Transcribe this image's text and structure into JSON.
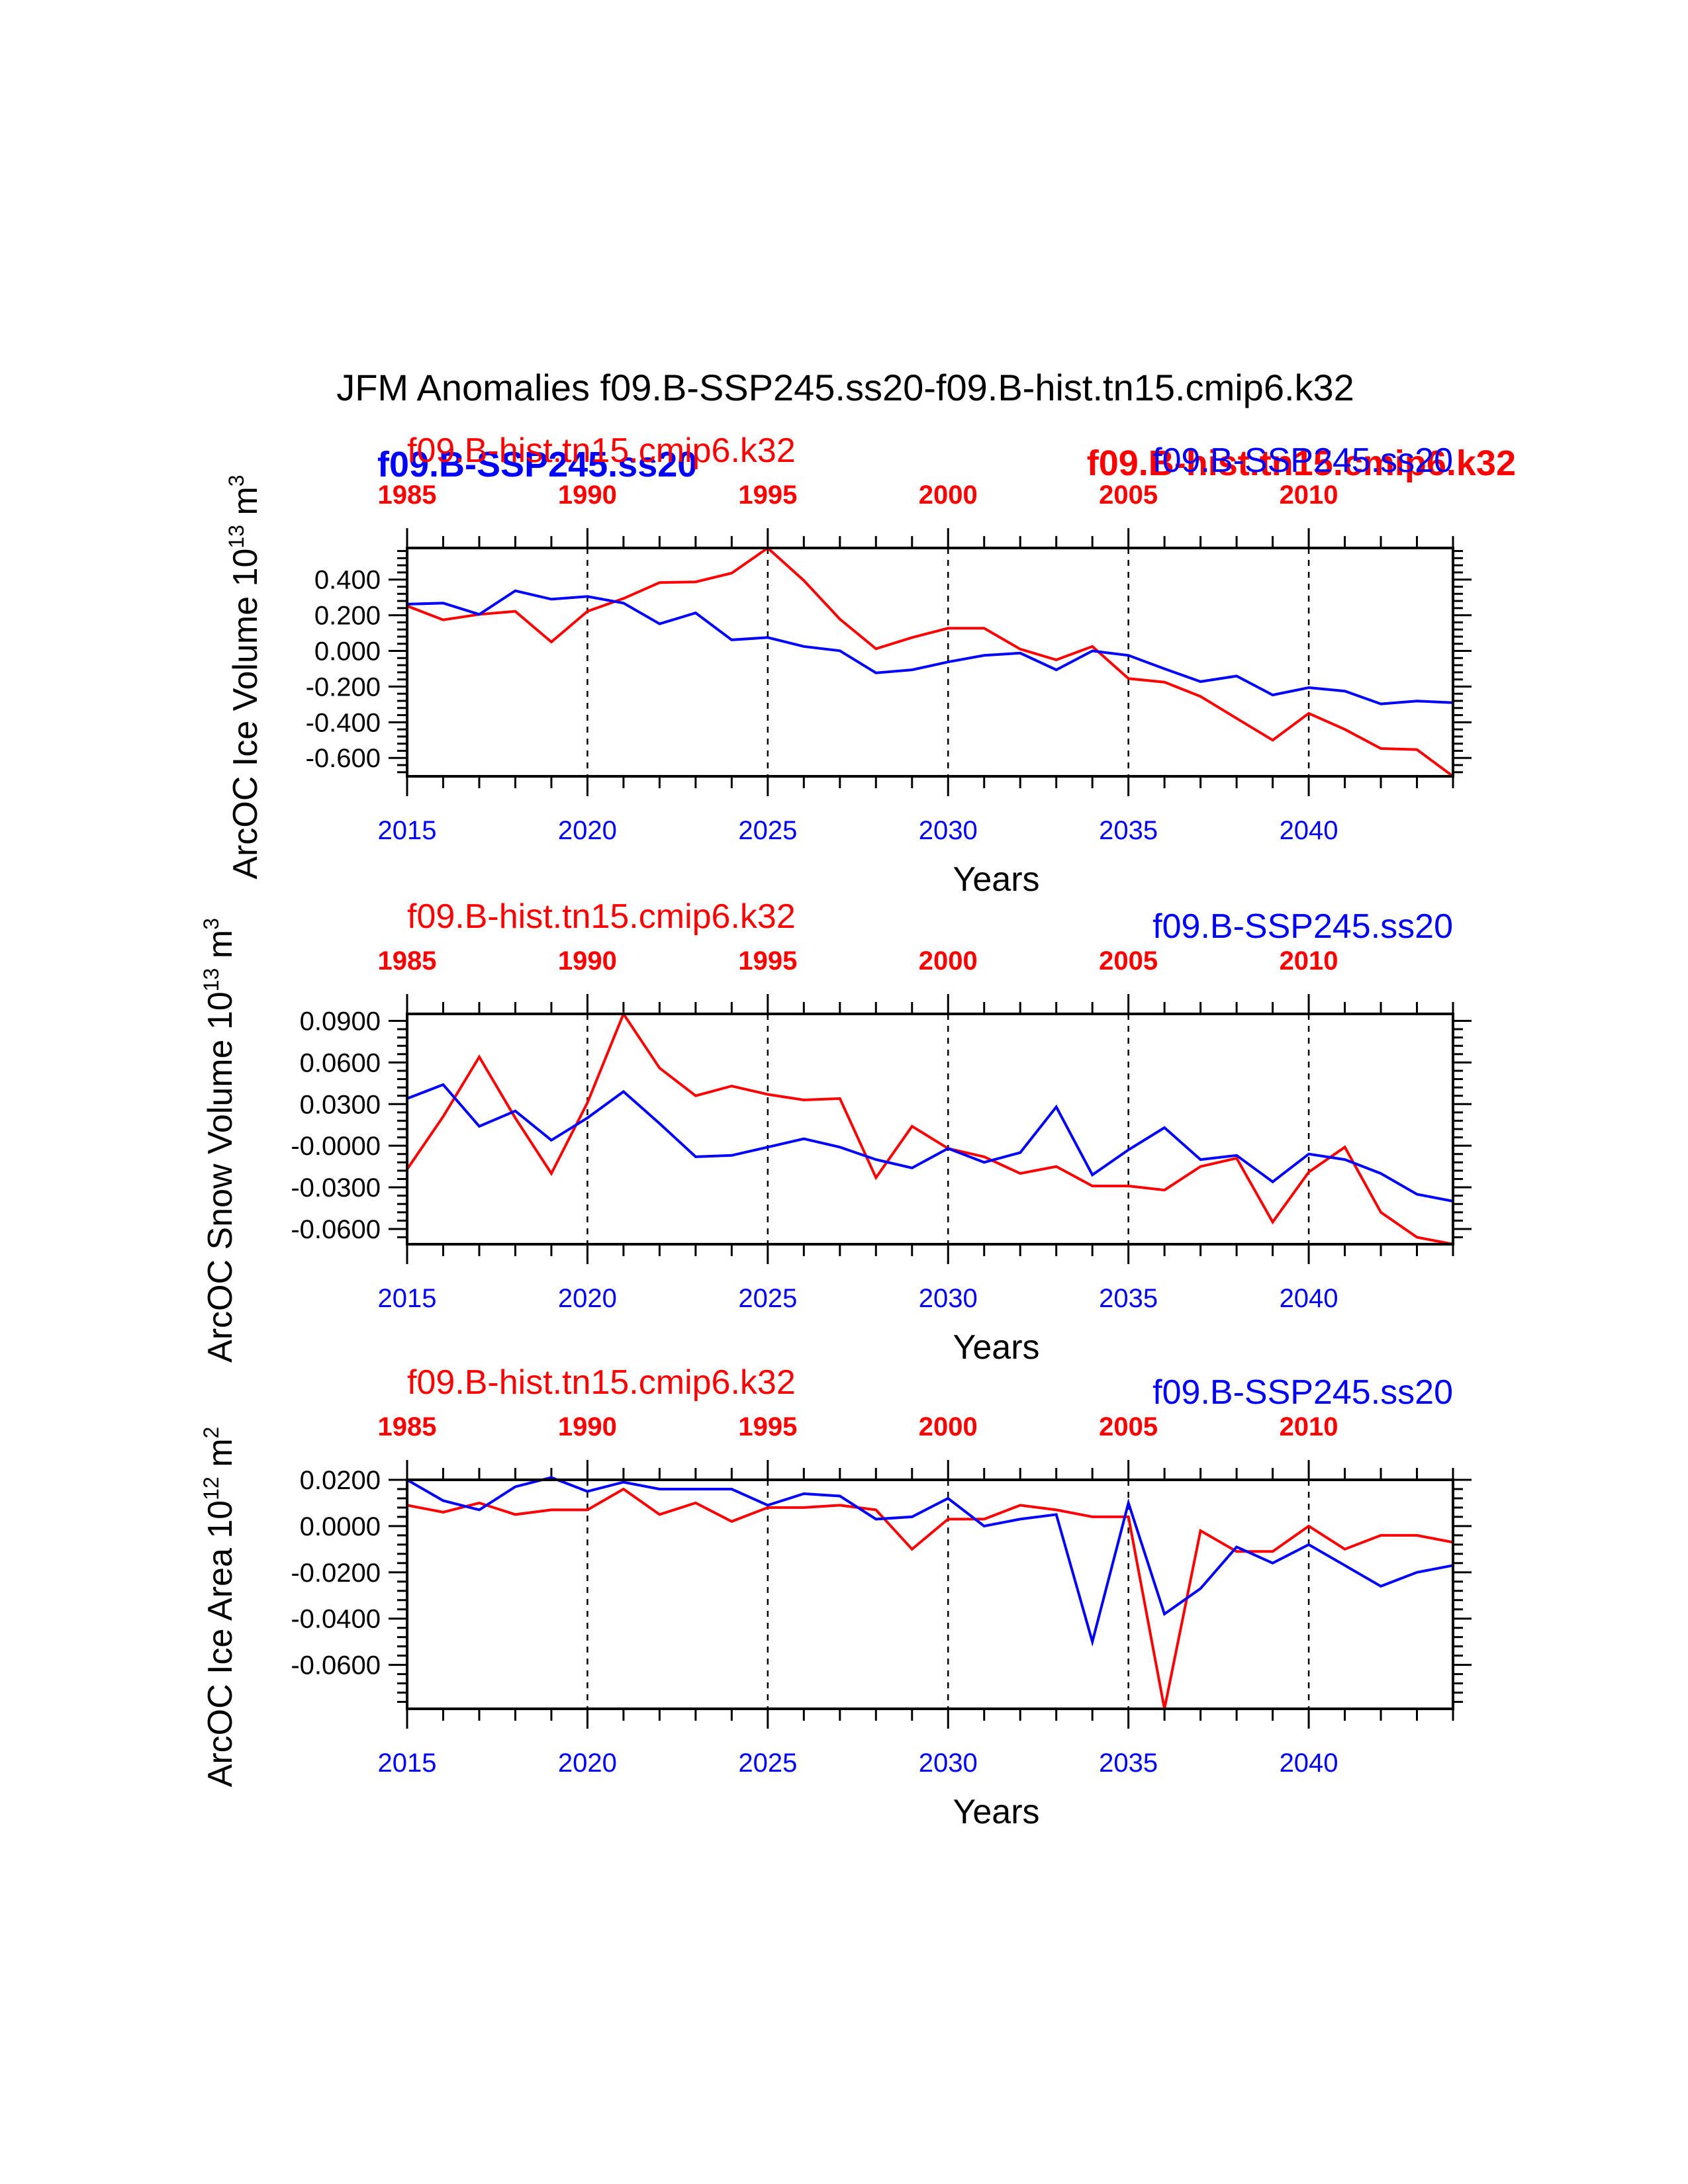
{
  "main_title": "JFM Anomalies f09.B-SSP245.ss20-f09.B-hist.tn15.cmip6.k32",
  "colors": {
    "case": "#0000ff",
    "control": "#ff0000",
    "axis": "#000000"
  },
  "overlap_labels": {
    "case": "f09.B-SSP245.ss20",
    "control": "f09.B-hist.tn15.cmip6.k32"
  },
  "chart_data": [
    {
      "type": "line",
      "ylabel": "ArcOC Ice Volume 10",
      "ylabel_exp": "13",
      "ylabel_unit": " m",
      "ylabel_unit_exp": "3",
      "xlabel": "Years",
      "bottom_ticks": [
        "2015",
        "2020",
        "2025",
        "2030",
        "2035",
        "2040"
      ],
      "top_ticks": [
        "1985",
        "1990",
        "1995",
        "2000",
        "2005",
        "2010"
      ],
      "yticks": [
        "0.400",
        "0.200",
        "0.000",
        "-0.200",
        "-0.400",
        "-0.600"
      ],
      "ytick_values": [
        0.4,
        0.2,
        0.0,
        -0.2,
        -0.4,
        -0.6
      ],
      "ylim": [
        -0.703,
        0.577
      ],
      "xlim": [
        2015,
        2044
      ],
      "grid": "dashed vertical at labeled years",
      "left_label": "f09.B-hist.tn15.cmip6.k32",
      "right_label": "f09.B-SSP245.ss20",
      "series": [
        {
          "name": "f09.B-SSP245.ss20",
          "color": "#0000ff",
          "x": [
            2015,
            2016,
            2017,
            2018,
            2019,
            2020,
            2021,
            2022,
            2023,
            2024,
            2025,
            2026,
            2027,
            2028,
            2029,
            2030,
            2031,
            2032,
            2033,
            2034,
            2035,
            2036,
            2037,
            2038,
            2039,
            2040,
            2041,
            2042,
            2043,
            2044
          ],
          "values": [
            0.262,
            0.268,
            0.205,
            0.337,
            0.29,
            0.305,
            0.268,
            0.152,
            0.213,
            0.062,
            0.075,
            0.025,
            0.001,
            -0.123,
            -0.106,
            -0.062,
            -0.025,
            -0.012,
            -0.106,
            0.0,
            -0.025,
            -0.1,
            -0.172,
            -0.141,
            -0.247,
            -0.206,
            -0.225,
            -0.297,
            -0.281,
            -0.29
          ]
        },
        {
          "name": "f09.B-hist.tn15.cmip6.k32",
          "color": "#ff0000",
          "x": [
            2015,
            2016,
            2017,
            2018,
            2019,
            2020,
            2021,
            2022,
            2023,
            2024,
            2025,
            2026,
            2027,
            2028,
            2029,
            2030,
            2031,
            2032,
            2033,
            2034,
            2035,
            2036,
            2037,
            2038,
            2039,
            2040,
            2041,
            2042,
            2043,
            2044
          ],
          "values": [
            0.252,
            0.174,
            0.205,
            0.222,
            0.05,
            0.222,
            0.294,
            0.383,
            0.387,
            0.436,
            0.577,
            0.395,
            0.178,
            0.012,
            0.075,
            0.127,
            0.127,
            0.01,
            -0.05,
            0.025,
            -0.155,
            -0.175,
            -0.255,
            -0.378,
            -0.5,
            -0.35,
            -0.44,
            -0.547,
            -0.553,
            -0.703
          ]
        }
      ]
    },
    {
      "type": "line",
      "ylabel": "ArcOC Snow Volume 10",
      "ylabel_exp": "13",
      "ylabel_unit": " m",
      "ylabel_unit_exp": "3",
      "xlabel": "Years",
      "bottom_ticks": [
        "2015",
        "2020",
        "2025",
        "2030",
        "2035",
        "2040"
      ],
      "top_ticks": [
        "1985",
        "1990",
        "1995",
        "2000",
        "2005",
        "2010"
      ],
      "yticks": [
        "0.0900",
        "0.0600",
        "0.0300",
        "-0.0000",
        "-0.0300",
        "-0.0600"
      ],
      "ytick_values": [
        0.09,
        0.06,
        0.03,
        0.0,
        -0.03,
        -0.06
      ],
      "ylim": [
        -0.071,
        0.095
      ],
      "xlim": [
        2015,
        2044
      ],
      "grid": "dashed vertical at labeled years",
      "left_label": "f09.B-hist.tn15.cmip6.k32",
      "right_label": "f09.B-SSP245.ss20",
      "series": [
        {
          "name": "f09.B-SSP245.ss20",
          "color": "#0000ff",
          "x": [
            2015,
            2016,
            2017,
            2018,
            2019,
            2020,
            2021,
            2022,
            2023,
            2024,
            2025,
            2026,
            2027,
            2028,
            2029,
            2030,
            2031,
            2032,
            2033,
            2034,
            2035,
            2036,
            2037,
            2038,
            2039,
            2040,
            2041,
            2042,
            2043,
            2044
          ],
          "values": [
            0.034,
            0.044,
            0.014,
            0.025,
            0.004,
            0.02,
            0.039,
            0.016,
            -0.008,
            -0.007,
            -0.001,
            0.005,
            -0.001,
            -0.01,
            -0.016,
            -0.002,
            -0.012,
            -0.005,
            0.028,
            -0.021,
            -0.003,
            0.013,
            -0.01,
            -0.007,
            -0.026,
            -0.006,
            -0.01,
            -0.02,
            -0.035,
            -0.04
          ]
        },
        {
          "name": "f09.B-hist.tn15.cmip6.k32",
          "color": "#ff0000",
          "x": [
            2015,
            2016,
            2017,
            2018,
            2019,
            2020,
            2021,
            2022,
            2023,
            2024,
            2025,
            2026,
            2027,
            2028,
            2029,
            2030,
            2031,
            2032,
            2033,
            2034,
            2035,
            2036,
            2037,
            2038,
            2039,
            2040,
            2041,
            2042,
            2043,
            2044
          ],
          "values": [
            -0.017,
            0.021,
            0.064,
            0.02,
            -0.02,
            0.031,
            0.095,
            0.056,
            0.036,
            0.043,
            0.037,
            0.033,
            0.034,
            -0.023,
            0.014,
            -0.002,
            -0.008,
            -0.02,
            -0.015,
            -0.029,
            -0.029,
            -0.032,
            -0.015,
            -0.009,
            -0.055,
            -0.019,
            -0.001,
            -0.048,
            -0.066,
            -0.071
          ]
        }
      ]
    },
    {
      "type": "line",
      "ylabel": "ArcOC Ice Area 10",
      "ylabel_exp": "12",
      "ylabel_unit": " m",
      "ylabel_unit_exp": "2",
      "xlabel": "Years",
      "bottom_ticks": [
        "2015",
        "2020",
        "2025",
        "2030",
        "2035",
        "2040"
      ],
      "top_ticks": [
        "1985",
        "1990",
        "1995",
        "2000",
        "2005",
        "2010"
      ],
      "yticks": [
        "0.0200",
        "0.0000",
        "-0.0200",
        "-0.0400",
        "-0.0600"
      ],
      "ytick_values": [
        0.02,
        0.0,
        -0.02,
        -0.04,
        -0.06
      ],
      "ylim": [
        -0.079,
        0.02
      ],
      "xlim": [
        2015,
        2044
      ],
      "grid": "dashed vertical at labeled years",
      "left_label": "f09.B-hist.tn15.cmip6.k32",
      "right_label": "f09.B-SSP245.ss20",
      "series": [
        {
          "name": "f09.B-SSP245.ss20",
          "color": "#0000ff",
          "x": [
            2015,
            2016,
            2017,
            2018,
            2019,
            2020,
            2021,
            2022,
            2023,
            2024,
            2025,
            2026,
            2027,
            2028,
            2029,
            2030,
            2031,
            2032,
            2033,
            2034,
            2035,
            2036,
            2037,
            2038,
            2039,
            2040,
            2041,
            2042,
            2043,
            2044
          ],
          "values": [
            0.02,
            0.011,
            0.007,
            0.017,
            0.021,
            0.015,
            0.019,
            0.016,
            0.016,
            0.016,
            0.009,
            0.014,
            0.013,
            0.003,
            0.004,
            0.012,
            0.0,
            0.003,
            0.005,
            -0.05,
            0.01,
            -0.038,
            -0.027,
            -0.009,
            -0.016,
            -0.008,
            -0.017,
            -0.026,
            -0.02,
            -0.017
          ]
        },
        {
          "name": "f09.B-hist.tn15.cmip6.k32",
          "color": "#ff0000",
          "x": [
            2015,
            2016,
            2017,
            2018,
            2019,
            2020,
            2021,
            2022,
            2023,
            2024,
            2025,
            2026,
            2027,
            2028,
            2029,
            2030,
            2031,
            2032,
            2033,
            2034,
            2035,
            2036,
            2037,
            2038,
            2039,
            2040,
            2041,
            2042,
            2043,
            2044
          ],
          "values": [
            0.009,
            0.006,
            0.01,
            0.005,
            0.007,
            0.007,
            0.016,
            0.005,
            0.01,
            0.002,
            0.008,
            0.008,
            0.009,
            0.007,
            -0.01,
            0.003,
            0.003,
            0.009,
            0.007,
            0.004,
            0.004,
            -0.079,
            -0.002,
            -0.011,
            -0.011,
            0.0,
            -0.01,
            -0.004,
            -0.004,
            -0.007
          ]
        }
      ]
    }
  ]
}
